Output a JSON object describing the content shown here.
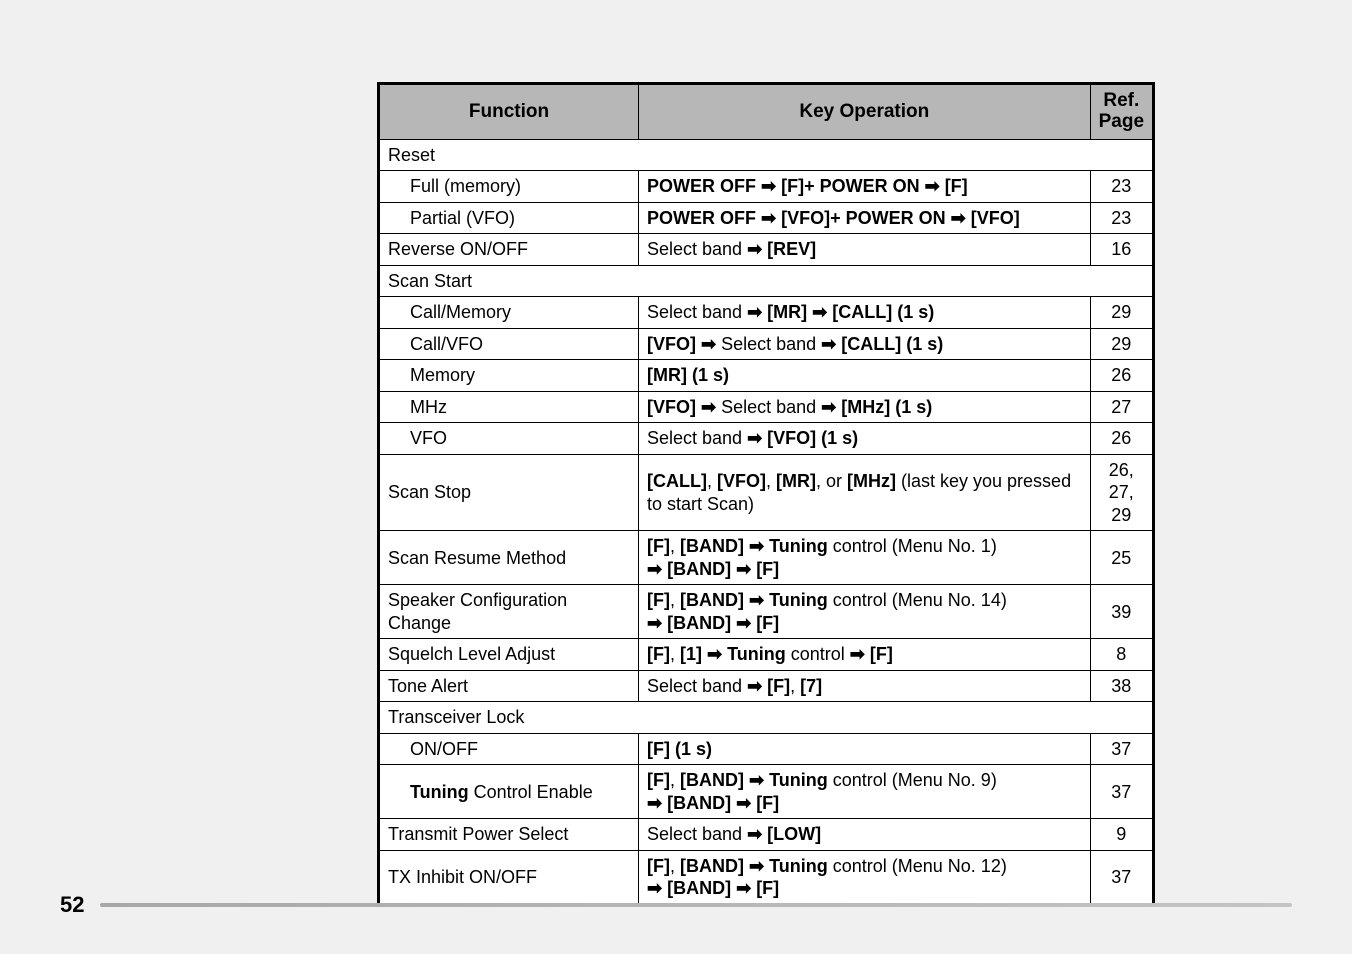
{
  "page_number": "52",
  "headers": {
    "function": "Function",
    "key_operation": "Key Operation",
    "ref_page": "Ref. Page"
  },
  "rows": [
    {
      "type": "section",
      "fn": "Reset"
    },
    {
      "type": "row",
      "indent": true,
      "fn": "Full (memory)",
      "op_parts": [
        {
          "b": 1,
          "t": "POWER OFF "
        },
        {
          "ar": 1
        },
        {
          "b": 1,
          "t": " [F]+ POWER ON "
        },
        {
          "ar": 1
        },
        {
          "b": 1,
          "t": " [F]"
        }
      ],
      "ref": "23"
    },
    {
      "type": "row",
      "indent": true,
      "fn": "Partial (VFO)",
      "op_parts": [
        {
          "b": 1,
          "t": "POWER OFF "
        },
        {
          "ar": 1
        },
        {
          "b": 1,
          "t": " [VFO]+ POWER ON "
        },
        {
          "ar": 1
        },
        {
          "b": 1,
          "t": " [VFO]"
        }
      ],
      "ref": "23"
    },
    {
      "type": "row",
      "fn": "Reverse ON/OFF",
      "op_parts": [
        {
          "t": "Select band "
        },
        {
          "ar": 1
        },
        {
          "b": 1,
          "t": " [REV]"
        }
      ],
      "ref": "16"
    },
    {
      "type": "section",
      "fn": "Scan Start"
    },
    {
      "type": "row",
      "indent": true,
      "fn": "Call/Memory",
      "op_parts": [
        {
          "t": "Select band "
        },
        {
          "ar": 1
        },
        {
          "b": 1,
          "t": " [MR] "
        },
        {
          "ar": 1
        },
        {
          "b": 1,
          "t": " [CALL] (1 s)"
        }
      ],
      "ref": "29"
    },
    {
      "type": "row",
      "indent": true,
      "fn": "Call/VFO",
      "op_parts": [
        {
          "b": 1,
          "t": "[VFO] "
        },
        {
          "ar": 1
        },
        {
          "t": " Select band "
        },
        {
          "ar": 1
        },
        {
          "b": 1,
          "t": " [CALL] (1 s)"
        }
      ],
      "ref": "29"
    },
    {
      "type": "row",
      "indent": true,
      "fn": "Memory",
      "op_parts": [
        {
          "b": 1,
          "t": "[MR] (1 s)"
        }
      ],
      "ref": "26"
    },
    {
      "type": "row",
      "indent": true,
      "fn": "MHz",
      "op_parts": [
        {
          "b": 1,
          "t": "[VFO] "
        },
        {
          "ar": 1
        },
        {
          "t": " Select band "
        },
        {
          "ar": 1
        },
        {
          "b": 1,
          "t": " [MHz] (1 s)"
        }
      ],
      "ref": "27"
    },
    {
      "type": "row",
      "indent": true,
      "fn": "VFO",
      "op_parts": [
        {
          "t": "Select band "
        },
        {
          "ar": 1
        },
        {
          "b": 1,
          "t": " [VFO] (1 s)"
        }
      ],
      "ref": "26"
    },
    {
      "type": "row",
      "fn": "Scan Stop",
      "op_parts": [
        {
          "b": 1,
          "t": "[CALL]"
        },
        {
          "t": ", "
        },
        {
          "b": 1,
          "t": "[VFO]"
        },
        {
          "t": ", "
        },
        {
          "b": 1,
          "t": "[MR]"
        },
        {
          "t": ", or "
        },
        {
          "b": 1,
          "t": "[MHz]"
        },
        {
          "t": " (last key you pressed"
        },
        {
          "br": 1
        },
        {
          "t": "to start Scan)"
        }
      ],
      "ref": "26, 27, 29"
    },
    {
      "type": "row",
      "fn": "Scan Resume Method",
      "op_parts": [
        {
          "b": 1,
          "t": "[F]"
        },
        {
          "t": ", "
        },
        {
          "b": 1,
          "t": "[BAND] "
        },
        {
          "ar": 1
        },
        {
          "b": 1,
          "t": " Tuning"
        },
        {
          "t": " control (Menu No. 1)"
        },
        {
          "br": 1
        },
        {
          "ar": 1
        },
        {
          "b": 1,
          "t": "  [BAND] "
        },
        {
          "ar": 1
        },
        {
          "b": 1,
          "t": " [F]"
        }
      ],
      "ref": "25"
    },
    {
      "type": "row",
      "fn_parts": [
        {
          "t": "Speaker Configuration"
        },
        {
          "br": 1
        },
        {
          "t": "Change"
        }
      ],
      "op_parts": [
        {
          "b": 1,
          "t": "[F]"
        },
        {
          "t": ", "
        },
        {
          "b": 1,
          "t": "[BAND] "
        },
        {
          "ar": 1
        },
        {
          "b": 1,
          "t": " Tuning"
        },
        {
          "t": " control (Menu No. 14)"
        },
        {
          "br": 1
        },
        {
          "ar": 1
        },
        {
          "b": 1,
          "t": "  [BAND] "
        },
        {
          "ar": 1
        },
        {
          "b": 1,
          "t": " [F]"
        }
      ],
      "ref": "39"
    },
    {
      "type": "row",
      "fn": "Squelch Level Adjust",
      "op_parts": [
        {
          "b": 1,
          "t": "[F]"
        },
        {
          "t": ", "
        },
        {
          "b": 1,
          "t": "[1] "
        },
        {
          "ar": 1
        },
        {
          "b": 1,
          "t": " Tuning"
        },
        {
          "t": " control "
        },
        {
          "ar": 1
        },
        {
          "b": 1,
          "t": " [F]"
        }
      ],
      "ref": "8"
    },
    {
      "type": "row",
      "fn": "Tone Alert",
      "op_parts": [
        {
          "t": "Select band "
        },
        {
          "ar": 1
        },
        {
          "b": 1,
          "t": " [F]"
        },
        {
          "t": ", "
        },
        {
          "b": 1,
          "t": "[7]"
        }
      ],
      "ref": "38"
    },
    {
      "type": "section",
      "fn": "Transceiver Lock"
    },
    {
      "type": "row",
      "indent": true,
      "fn": "ON/OFF",
      "op_parts": [
        {
          "b": 1,
          "t": "[F] (1 s)"
        }
      ],
      "ref": "37"
    },
    {
      "type": "row",
      "indent": true,
      "fn_parts": [
        {
          "b": 1,
          "t": "Tuning"
        },
        {
          "t": " Control Enable"
        }
      ],
      "op_parts": [
        {
          "b": 1,
          "t": "[F]"
        },
        {
          "t": ", "
        },
        {
          "b": 1,
          "t": "[BAND] "
        },
        {
          "ar": 1
        },
        {
          "b": 1,
          "t": " Tuning"
        },
        {
          "t": " control (Menu No. 9)"
        },
        {
          "br": 1
        },
        {
          "ar": 1
        },
        {
          "b": 1,
          "t": "  [BAND] "
        },
        {
          "ar": 1
        },
        {
          "b": 1,
          "t": " [F]"
        }
      ],
      "ref": "37"
    },
    {
      "type": "row",
      "fn": "Transmit Power Select",
      "op_parts": [
        {
          "t": "Select band "
        },
        {
          "ar": 1
        },
        {
          "b": 1,
          "t": " [LOW]"
        }
      ],
      "ref": "9"
    },
    {
      "type": "row",
      "fn": "TX Inhibit ON/OFF",
      "op_parts": [
        {
          "b": 1,
          "t": "[F]"
        },
        {
          "t": ", "
        },
        {
          "b": 1,
          "t": "[BAND] "
        },
        {
          "ar": 1
        },
        {
          "b": 1,
          "t": " Tuning"
        },
        {
          "t": " control (Menu No. 12)"
        },
        {
          "br": 1
        },
        {
          "ar": 1
        },
        {
          "b": 1,
          "t": "  [BAND] "
        },
        {
          "ar": 1
        },
        {
          "b": 1,
          "t": " [F]"
        }
      ],
      "ref": "37"
    }
  ],
  "arrow_glyph": "➡"
}
